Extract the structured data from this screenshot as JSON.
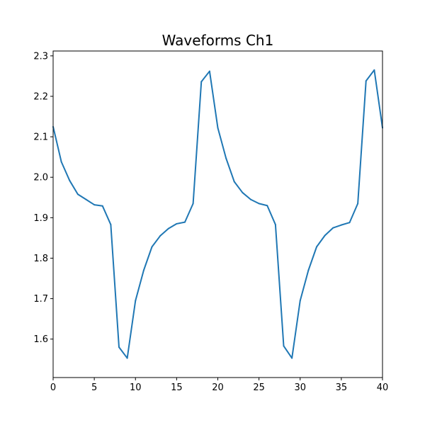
{
  "chart_data": {
    "type": "line",
    "title": "Waveforms Ch1",
    "xlabel": "",
    "ylabel": "",
    "xlim": [
      0,
      40
    ],
    "ylim": [
      1.505,
      2.312
    ],
    "xticks": [
      0,
      5,
      10,
      15,
      20,
      25,
      30,
      35,
      40
    ],
    "xtick_labels": [
      "0",
      "5",
      "10",
      "15",
      "20",
      "25",
      "30",
      "35",
      "40"
    ],
    "yticks": [
      1.6,
      1.7,
      1.8,
      1.9,
      2.0,
      2.1,
      2.2,
      2.3
    ],
    "ytick_labels": [
      "1.6",
      "1.7",
      "1.8",
      "1.9",
      "2.0",
      "2.1",
      "2.2",
      "2.3"
    ],
    "grid": false,
    "series": [
      {
        "color": "#1f77b4",
        "x": [
          0,
          1,
          2,
          3,
          4,
          5,
          6,
          7,
          8,
          9,
          10,
          11,
          12,
          13,
          14,
          15,
          16,
          17,
          18,
          19,
          20,
          21,
          22,
          23,
          24,
          25,
          26,
          27,
          28,
          29,
          30,
          31,
          32,
          33,
          34,
          35,
          36,
          37,
          38,
          39,
          40
        ],
        "values": [
          2.125,
          2.038,
          1.992,
          1.958,
          1.945,
          1.932,
          1.929,
          1.883,
          1.58,
          1.553,
          1.695,
          1.77,
          1.828,
          1.855,
          1.873,
          1.885,
          1.889,
          1.935,
          2.236,
          2.262,
          2.122,
          2.047,
          1.989,
          1.962,
          1.945,
          1.935,
          1.93,
          1.883,
          1.583,
          1.553,
          1.695,
          1.77,
          1.828,
          1.856,
          1.875,
          1.882,
          1.888,
          1.935,
          2.238,
          2.265,
          2.122
        ]
      }
    ]
  }
}
